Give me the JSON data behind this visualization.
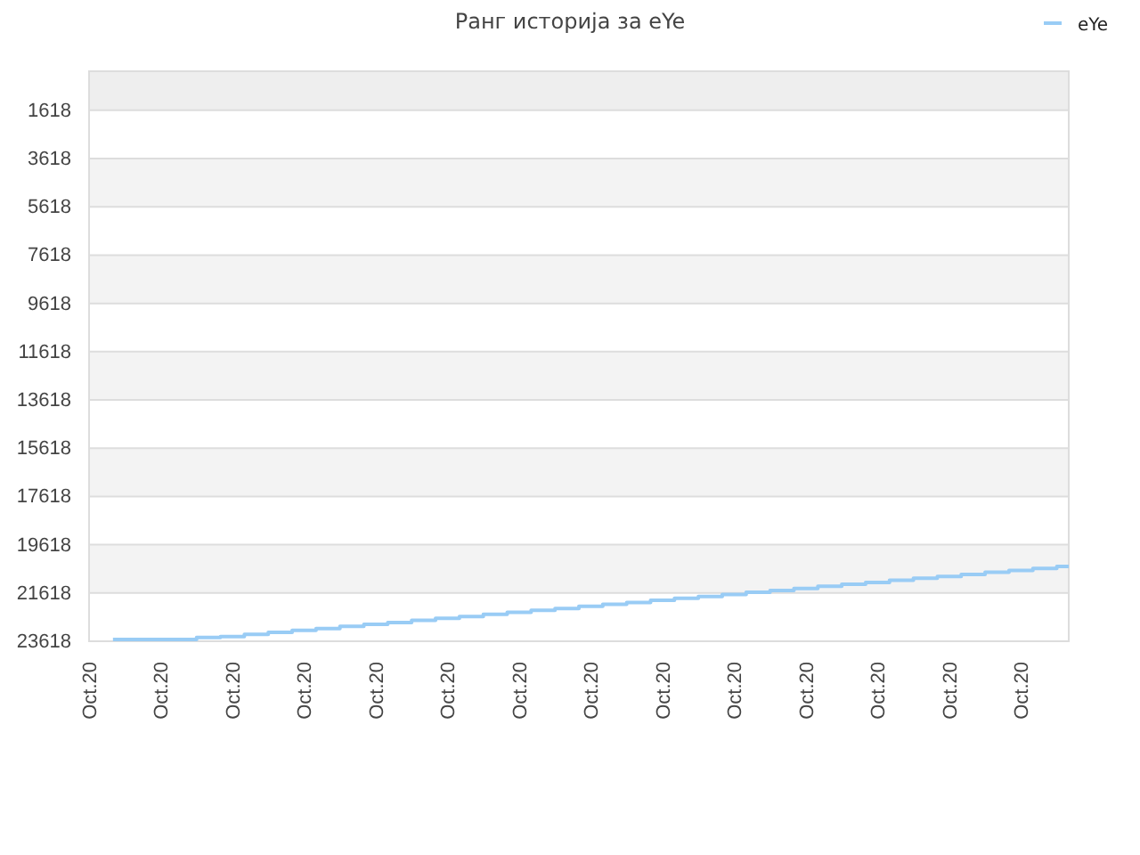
{
  "chart_data": {
    "type": "step",
    "title": "Ранг историја за eYe",
    "categories": [
      "Oct.20",
      null,
      null,
      "Oct.20",
      null,
      null,
      "Oct.20",
      null,
      null,
      "Oct.20",
      null,
      null,
      "Oct.20",
      null,
      null,
      "Oct.20",
      null,
      null,
      "Oct.20",
      null,
      null,
      "Oct.20",
      null,
      null,
      "Oct.20",
      null,
      null,
      "Oct.20",
      null,
      null,
      "Oct.20",
      null,
      null,
      "Oct.20",
      null,
      null,
      "Oct.20",
      null,
      null,
      "Oct.20",
      null,
      null
    ],
    "series": [
      {
        "name": "eYe",
        "color": "#99ccf5",
        "values": [
          null,
          23540,
          23540,
          23540,
          23540,
          23460,
          23420,
          23330,
          23250,
          23170,
          23090,
          23000,
          22920,
          22840,
          22750,
          22670,
          22590,
          22500,
          22420,
          22340,
          22260,
          22170,
          22090,
          22010,
          21920,
          21840,
          21760,
          21680,
          21590,
          21510,
          21430,
          21340,
          21260,
          21180,
          21090,
          21010,
          20930,
          20850,
          20760,
          20680,
          20600,
          20520
        ]
      }
    ],
    "ylim": [
      23618,
      0
    ],
    "yticks": [
      1618,
      3618,
      5618,
      7618,
      9618,
      11618,
      13618,
      15618,
      17618,
      19618,
      21618,
      23618
    ],
    "bands": [
      {
        "axis": "y",
        "from": 0,
        "to": 1618,
        "color": "#eeeeee"
      },
      {
        "axis": "y",
        "from": 3618,
        "to": 5618,
        "color": "#f3f3f3"
      },
      {
        "axis": "y",
        "from": 7618,
        "to": 9618,
        "color": "#f3f3f3"
      },
      {
        "axis": "y",
        "from": 11618,
        "to": 13618,
        "color": "#f3f3f3"
      },
      {
        "axis": "y",
        "from": 15618,
        "to": 17618,
        "color": "#f3f3f3"
      },
      {
        "axis": "y",
        "from": 19618,
        "to": 21618,
        "color": "#f3f3f3"
      }
    ],
    "grid": "y",
    "legend": "top right",
    "marker": "none",
    "line_style": "solid"
  }
}
